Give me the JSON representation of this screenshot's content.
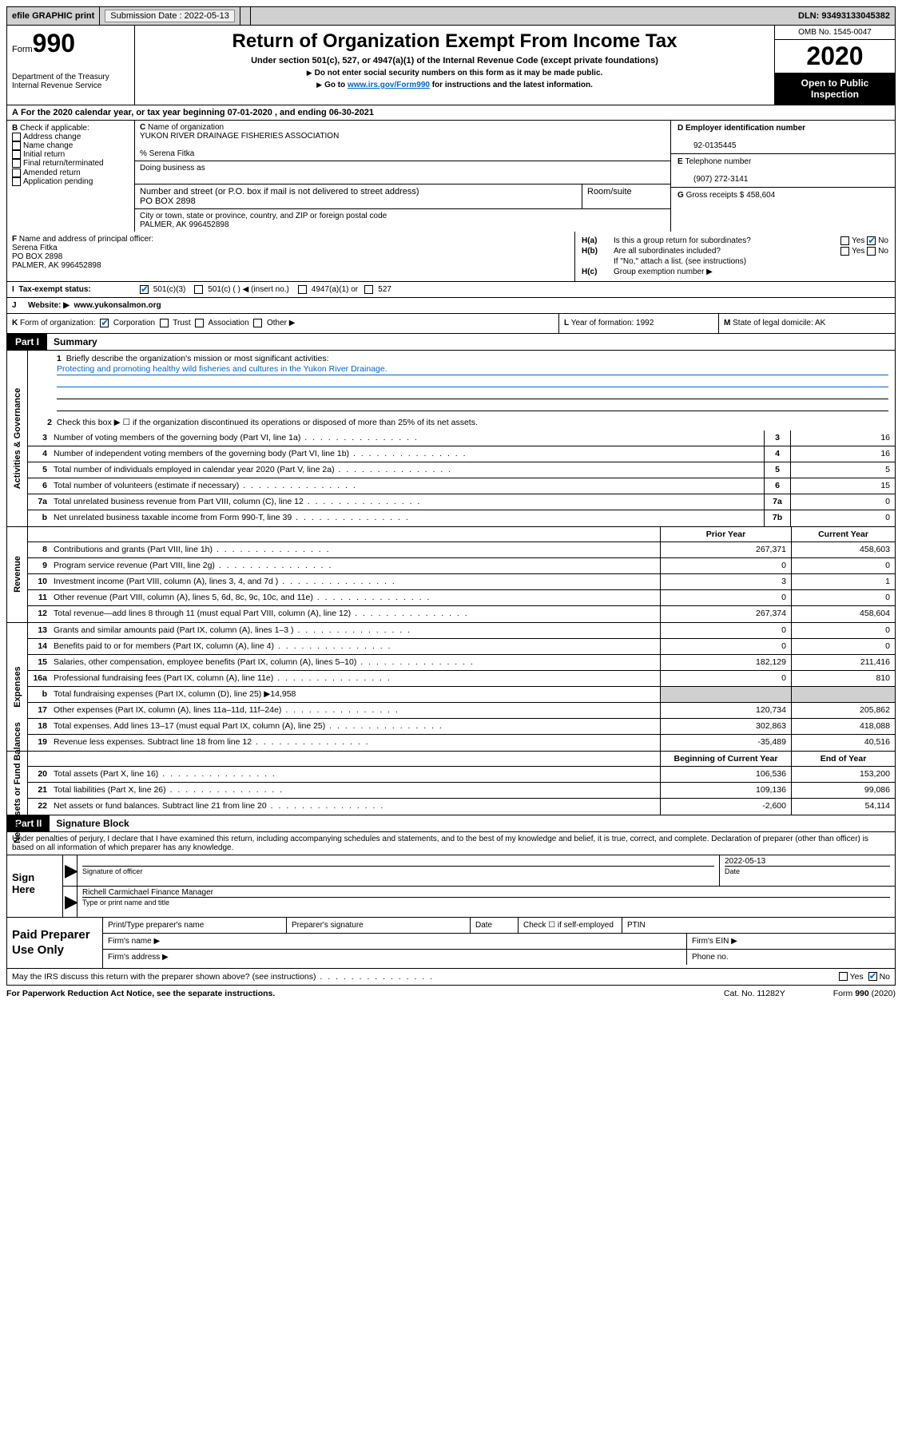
{
  "topbar": {
    "efile": "efile GRAPHIC print",
    "submission_label": "Submission Date : 2022-05-13",
    "dln": "DLN: 93493133045382"
  },
  "header": {
    "form_word": "Form",
    "form_num": "990",
    "dept": "Department of the Treasury\nInternal Revenue Service",
    "title": "Return of Organization Exempt From Income Tax",
    "sub": "Under section 501(c), 527, or 4947(a)(1) of the Internal Revenue Code (except private foundations)",
    "note1": "Do not enter social security numbers on this form as it may be made public.",
    "note2_pre": "Go to ",
    "note2_link": "www.irs.gov/Form990",
    "note2_post": " for instructions and the latest information.",
    "omb": "OMB No. 1545-0047",
    "year": "2020",
    "inspect": "Open to Public Inspection"
  },
  "lineA": "For the 2020 calendar year, or tax year beginning 07-01-2020    , and ending 06-30-2021",
  "boxB": {
    "label": "Check if applicable:",
    "items": [
      "Address change",
      "Name change",
      "Initial return",
      "Final return/terminated",
      "Amended return",
      "Application pending"
    ]
  },
  "boxC": {
    "name_lbl": "Name of organization",
    "name": "YUKON RIVER DRAINAGE FISHERIES ASSOCIATION",
    "care_of": "% Serena Fitka",
    "dba_lbl": "Doing business as",
    "street_lbl": "Number and street (or P.O. box if mail is not delivered to street address)",
    "room_lbl": "Room/suite",
    "street": "PO BOX 2898",
    "city_lbl": "City or town, state or province, country, and ZIP or foreign postal code",
    "city": "PALMER, AK  996452898"
  },
  "boxD": {
    "lbl": "Employer identification number",
    "val": "92-0135445"
  },
  "boxE": {
    "lbl": "Telephone number",
    "val": "(907) 272-3141"
  },
  "boxG": {
    "lbl": "Gross receipts $",
    "val": "458,604"
  },
  "boxF": {
    "lbl": "Name and address of principal officer:",
    "name": "Serena Fitka",
    "addr1": "PO BOX 2898",
    "addr2": "PALMER, AK  996452898"
  },
  "boxH": {
    "a": "Is this a group return for subordinates?",
    "b": "Are all subordinates included?",
    "bnote": "If \"No,\" attach a list. (see instructions)",
    "c": "Group exemption number ▶"
  },
  "boxI": {
    "lbl": "Tax-exempt status:",
    "opts": [
      "501(c)(3)",
      "501(c) (   ) ◀ (insert no.)",
      "4947(a)(1) or",
      "527"
    ]
  },
  "boxJ": {
    "lbl": "Website: ▶",
    "val": "www.yukonsalmon.org"
  },
  "boxK": {
    "lbl": "Form of organization:",
    "opts": [
      "Corporation",
      "Trust",
      "Association",
      "Other ▶"
    ]
  },
  "boxL": "Year of formation: 1992",
  "boxM": "State of legal domicile: AK",
  "part1": {
    "hdr": "Part I",
    "title": "Summary",
    "side1": "Activities & Governance",
    "side2": "Revenue",
    "side3": "Expenses",
    "side4": "Net Assets or Fund Balances",
    "l1": "Briefly describe the organization's mission or most significant activities:",
    "l1val": "Protecting and promoting healthy wild fisheries and cultures in the Yukon River Drainage.",
    "l2": "Check this box ▶ ☐  if the organization discontinued its operations or disposed of more than 25% of its net assets.",
    "lines_ag": [
      {
        "n": "3",
        "t": "Number of voting members of the governing body (Part VI, line 1a)",
        "r": "3",
        "v": "16"
      },
      {
        "n": "4",
        "t": "Number of independent voting members of the governing body (Part VI, line 1b)",
        "r": "4",
        "v": "16"
      },
      {
        "n": "5",
        "t": "Total number of individuals employed in calendar year 2020 (Part V, line 2a)",
        "r": "5",
        "v": "5"
      },
      {
        "n": "6",
        "t": "Total number of volunteers (estimate if necessary)",
        "r": "6",
        "v": "15"
      },
      {
        "n": "7a",
        "t": "Total unrelated business revenue from Part VIII, column (C), line 12",
        "r": "7a",
        "v": "0"
      },
      {
        "n": "b",
        "t": "Net unrelated business taxable income from Form 990-T, line 39",
        "r": "7b",
        "v": "0"
      }
    ],
    "col_py": "Prior Year",
    "col_cy": "Current Year",
    "col_by": "Beginning of Current Year",
    "col_ey": "End of Year",
    "rev": [
      {
        "n": "8",
        "t": "Contributions and grants (Part VIII, line 1h)",
        "p": "267,371",
        "c": "458,603"
      },
      {
        "n": "9",
        "t": "Program service revenue (Part VIII, line 2g)",
        "p": "0",
        "c": "0"
      },
      {
        "n": "10",
        "t": "Investment income (Part VIII, column (A), lines 3, 4, and 7d )",
        "p": "3",
        "c": "1"
      },
      {
        "n": "11",
        "t": "Other revenue (Part VIII, column (A), lines 5, 6d, 8c, 9c, 10c, and 11e)",
        "p": "0",
        "c": "0"
      },
      {
        "n": "12",
        "t": "Total revenue—add lines 8 through 11 (must equal Part VIII, column (A), line 12)",
        "p": "267,374",
        "c": "458,604"
      }
    ],
    "exp": [
      {
        "n": "13",
        "t": "Grants and similar amounts paid (Part IX, column (A), lines 1–3 )",
        "p": "0",
        "c": "0"
      },
      {
        "n": "14",
        "t": "Benefits paid to or for members (Part IX, column (A), line 4)",
        "p": "0",
        "c": "0"
      },
      {
        "n": "15",
        "t": "Salaries, other compensation, employee benefits (Part IX, column (A), lines 5–10)",
        "p": "182,129",
        "c": "211,416"
      },
      {
        "n": "16a",
        "t": "Professional fundraising fees (Part IX, column (A), line 11e)",
        "p": "0",
        "c": "810"
      },
      {
        "n": "b",
        "t": "Total fundraising expenses (Part IX, column (D), line 25) ▶14,958",
        "p": "",
        "c": "",
        "grey": true
      },
      {
        "n": "17",
        "t": "Other expenses (Part IX, column (A), lines 11a–11d, 11f–24e)",
        "p": "120,734",
        "c": "205,862"
      },
      {
        "n": "18",
        "t": "Total expenses. Add lines 13–17 (must equal Part IX, column (A), line 25)",
        "p": "302,863",
        "c": "418,088"
      },
      {
        "n": "19",
        "t": "Revenue less expenses. Subtract line 18 from line 12",
        "p": "-35,489",
        "c": "40,516"
      }
    ],
    "na": [
      {
        "n": "20",
        "t": "Total assets (Part X, line 16)",
        "p": "106,536",
        "c": "153,200"
      },
      {
        "n": "21",
        "t": "Total liabilities (Part X, line 26)",
        "p": "109,136",
        "c": "99,086"
      },
      {
        "n": "22",
        "t": "Net assets or fund balances. Subtract line 21 from line 20",
        "p": "-2,600",
        "c": "54,114"
      }
    ]
  },
  "part2": {
    "hdr": "Part II",
    "title": "Signature Block",
    "perjury": "Under penalties of perjury, I declare that I have examined this return, including accompanying schedules and statements, and to the best of my knowledge and belief, it is true, correct, and complete. Declaration of preparer (other than officer) is based on all information of which preparer has any knowledge.",
    "sign_here": "Sign Here",
    "sig_officer": "Signature of officer",
    "sig_date": "2022-05-13",
    "date_lbl": "Date",
    "typed_name": "Richell Carmichael Finance Manager",
    "typed_lbl": "Type or print name and title",
    "paid_prep": "Paid Preparer Use Only",
    "pt_name": "Print/Type preparer's name",
    "pt_sig": "Preparer's signature",
    "pt_date": "Date",
    "pt_check": "Check ☐ if self-employed",
    "pt_ptin": "PTIN",
    "firm_name": "Firm's name    ▶",
    "firm_ein": "Firm's EIN ▶",
    "firm_addr": "Firm's address ▶",
    "phone": "Phone no.",
    "discuss": "May the IRS discuss this return with the preparer shown above? (see instructions)"
  },
  "footer": {
    "pra": "For Paperwork Reduction Act Notice, see the separate instructions.",
    "cat": "Cat. No. 11282Y",
    "form": "Form 990 (2020)"
  }
}
